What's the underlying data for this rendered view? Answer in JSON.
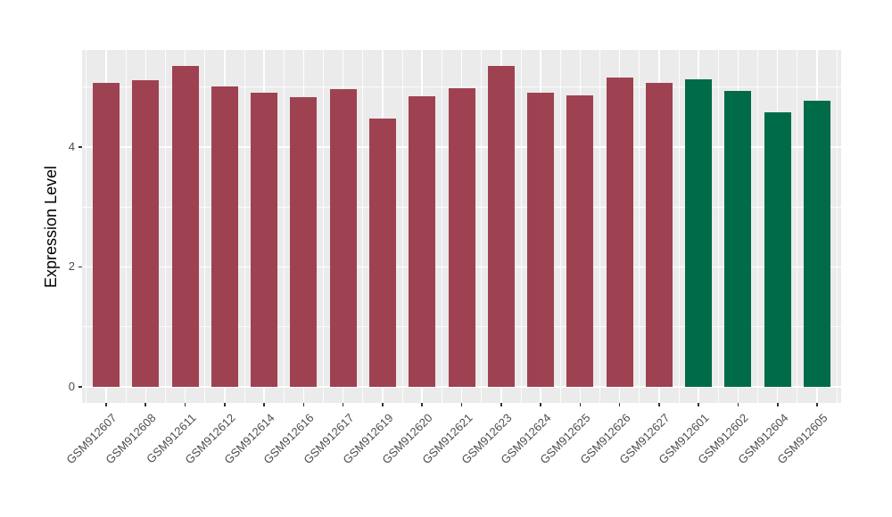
{
  "chart_data": {
    "type": "bar",
    "title": "",
    "xlabel": "",
    "ylabel": "Expression Level",
    "categories": [
      "GSM912607",
      "GSM912608",
      "GSM912611",
      "GSM912612",
      "GSM912614",
      "GSM912616",
      "GSM912617",
      "GSM912619",
      "GSM912620",
      "GSM912621",
      "GSM912623",
      "GSM912624",
      "GSM912625",
      "GSM912626",
      "GSM912627",
      "GSM912601",
      "GSM912602",
      "GSM912604",
      "GSM912605"
    ],
    "values": [
      5.07,
      5.11,
      5.35,
      5.01,
      4.9,
      4.83,
      4.97,
      4.48,
      4.85,
      4.98,
      5.35,
      4.9,
      4.86,
      5.16,
      5.07,
      5.13,
      4.94,
      4.58,
      4.77
    ],
    "colors": [
      "#9E4252",
      "#9E4252",
      "#9E4252",
      "#9E4252",
      "#9E4252",
      "#9E4252",
      "#9E4252",
      "#9E4252",
      "#9E4252",
      "#9E4252",
      "#9E4252",
      "#9E4252",
      "#9E4252",
      "#9E4252",
      "#9E4252",
      "#006B49",
      "#006B49",
      "#006B49",
      "#006B49"
    ],
    "yticks": [
      0,
      2,
      4
    ],
    "yticks_minor": [
      1,
      3,
      5
    ],
    "ylim": [
      -0.27,
      5.62
    ],
    "grid": "on",
    "legend": "none",
    "panel_background": "#EBEBEB",
    "gridline_color": "#FFFFFF",
    "bar_color_group1": "#9E4252",
    "bar_color_group2": "#006B49"
  }
}
